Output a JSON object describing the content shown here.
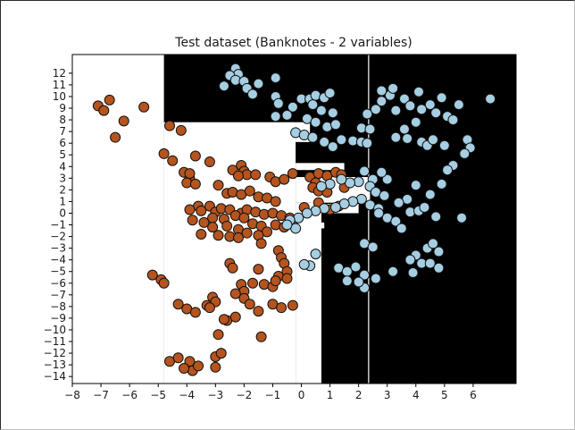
{
  "chart_data": {
    "type": "scatter",
    "title": "Test dataset (Banknotes - 2 variables)",
    "xlabel": "",
    "ylabel": "",
    "xlim": [
      -8,
      7.5
    ],
    "ylim": [
      -14.6,
      13.6
    ],
    "xticks": [
      -8,
      -7,
      -6,
      -5,
      -4,
      -3,
      -2,
      -1,
      0,
      1,
      2,
      3,
      4,
      5,
      6
    ],
    "yticks": [
      -14,
      -13,
      -12,
      -11,
      -10,
      -9,
      -8,
      -7,
      -6,
      -5,
      -4,
      -3,
      -2,
      -1,
      0,
      1,
      2,
      3,
      4,
      5,
      6,
      7,
      8,
      9,
      10,
      11,
      12
    ],
    "grid": false,
    "background_regions": {
      "class_brown_color": "#ffffff",
      "class_blue_color": "#000000",
      "brown_rects": [
        [
          -8,
          -4.8,
          -14.6,
          13.6
        ],
        [
          -4.8,
          -0.2,
          -14.6,
          7.8
        ],
        [
          -0.2,
          0.3,
          7.8,
          6.1
        ],
        [
          -0.2,
          1.5,
          4.3,
          3.7
        ],
        [
          -0.2,
          2.4,
          3.1,
          0.9
        ],
        [
          -0.2,
          0.4,
          0.9,
          -14.6
        ],
        [
          0.35,
          0.7,
          3.1,
          -14.6
        ],
        [
          0.3,
          2.0,
          0.8,
          0.0
        ],
        [
          -0.4,
          0.8,
          -0.8,
          -1.3
        ]
      ],
      "boundary_line_x": 2.35
    },
    "series": [
      {
        "color": "#b5541e",
        "points": [
          [
            -7.1,
            9.2
          ],
          [
            -6.9,
            8.8
          ],
          [
            -6.7,
            9.7
          ],
          [
            -6.5,
            6.5
          ],
          [
            -6.2,
            7.9
          ],
          [
            -5.5,
            9.1
          ],
          [
            -4.6,
            7.5
          ],
          [
            -4.2,
            7.1
          ],
          [
            -4.8,
            5.1
          ],
          [
            -4.5,
            4.5
          ],
          [
            -3.7,
            4.9
          ],
          [
            -3.2,
            4.4
          ],
          [
            -4.1,
            3.5
          ],
          [
            -3.9,
            3.0
          ],
          [
            -4.0,
            2.6
          ],
          [
            -3.7,
            2.5
          ],
          [
            -3.9,
            3.4
          ],
          [
            -2.9,
            2.4
          ],
          [
            -2.4,
            3.7
          ],
          [
            -2.1,
            4.1
          ],
          [
            -2.0,
            3.6
          ],
          [
            -1.9,
            3.3
          ],
          [
            -1.6,
            3.3
          ],
          [
            -2.2,
            3.2
          ],
          [
            -1.1,
            3.1
          ],
          [
            -0.9,
            2.7
          ],
          [
            -0.6,
            2.9
          ],
          [
            -0.3,
            3.4
          ],
          [
            0.3,
            3.1
          ],
          [
            0.6,
            3.4
          ],
          [
            0.9,
            3.2
          ],
          [
            1.2,
            3.5
          ],
          [
            1.4,
            3.3
          ],
          [
            0.5,
            2.6
          ],
          [
            0.4,
            2.2
          ],
          [
            0.6,
            1.9
          ],
          [
            0.9,
            1.8
          ],
          [
            1.5,
            2.2
          ],
          [
            -2.6,
            1.7
          ],
          [
            -2.4,
            1.8
          ],
          [
            -2.1,
            1.6
          ],
          [
            -1.8,
            1.9
          ],
          [
            -1.5,
            1.4
          ],
          [
            -1.2,
            1.3
          ],
          [
            -0.9,
            1.0
          ],
          [
            -3.2,
            0.6
          ],
          [
            -3.6,
            0.6
          ],
          [
            -3.9,
            0.3
          ],
          [
            -3.5,
            0.2
          ],
          [
            -3.0,
            0.1
          ],
          [
            -2.8,
            0.4
          ],
          [
            -2.5,
            0.3
          ],
          [
            -2.1,
            0.0
          ],
          [
            -1.9,
            0.3
          ],
          [
            -1.6,
            0.1
          ],
          [
            -1.3,
            -0.1
          ],
          [
            -1.0,
            0.0
          ],
          [
            -0.7,
            -0.2
          ],
          [
            -0.4,
            -0.4
          ],
          [
            0.1,
            0.5
          ],
          [
            0.6,
            0.9
          ],
          [
            1.0,
            0.3
          ],
          [
            1.3,
            0.6
          ],
          [
            -3.8,
            -0.6
          ],
          [
            -3.4,
            -0.8
          ],
          [
            -3.1,
            -0.4
          ],
          [
            -2.7,
            -0.5
          ],
          [
            -2.3,
            -0.2
          ],
          [
            -2.0,
            -0.4
          ],
          [
            -1.7,
            -0.9
          ],
          [
            -1.4,
            -1.1
          ],
          [
            -1.2,
            -1.6
          ],
          [
            -0.9,
            -1.0
          ],
          [
            -0.6,
            -1.2
          ],
          [
            -0.3,
            -0.9
          ],
          [
            -3.5,
            -1.8
          ],
          [
            -3.1,
            -1.2
          ],
          [
            -2.6,
            -1.1
          ],
          [
            -2.2,
            -1.4
          ],
          [
            -1.9,
            -1.7
          ],
          [
            -1.5,
            -1.9
          ],
          [
            -2.9,
            -1.9
          ],
          [
            -2.5,
            -2.0
          ],
          [
            -2.2,
            -2.1
          ],
          [
            -1.4,
            -2.6
          ],
          [
            -0.8,
            -3.2
          ],
          [
            -0.7,
            -3.8
          ],
          [
            -0.6,
            -4.3
          ],
          [
            -0.5,
            -5.0
          ],
          [
            -0.8,
            -5.4
          ],
          [
            -2.5,
            -4.3
          ],
          [
            -2.4,
            -4.7
          ],
          [
            -1.5,
            -4.8
          ],
          [
            -5.2,
            -5.3
          ],
          [
            -4.9,
            -5.7
          ],
          [
            -4.8,
            -6.0
          ],
          [
            -3.1,
            -7.2
          ],
          [
            -3.0,
            -7.6
          ],
          [
            -2.1,
            -6.1
          ],
          [
            -2.0,
            -6.7
          ],
          [
            -1.7,
            -6.0
          ],
          [
            -1.3,
            -6.1
          ],
          [
            -1.0,
            -6.3
          ],
          [
            -0.9,
            -5.8
          ],
          [
            -0.5,
            -5.6
          ],
          [
            -2.3,
            -6.9
          ],
          [
            -2.0,
            -7.3
          ],
          [
            -1.8,
            -7.8
          ],
          [
            -1.5,
            -8.4
          ],
          [
            -1.0,
            -7.8
          ],
          [
            -0.7,
            -8.1
          ],
          [
            -0.3,
            -7.9
          ],
          [
            -4.3,
            -7.8
          ],
          [
            -4.0,
            -8.2
          ],
          [
            -3.7,
            -8.5
          ],
          [
            -3.3,
            -7.9
          ],
          [
            -3.2,
            -8.1
          ],
          [
            -2.6,
            -9.2
          ],
          [
            -2.3,
            -8.9
          ],
          [
            -2.9,
            -10.4
          ],
          [
            -1.4,
            -10.6
          ],
          [
            -4.6,
            -12.7
          ],
          [
            -4.3,
            -12.4
          ],
          [
            -3.9,
            -12.7
          ],
          [
            -3.8,
            -13.5
          ],
          [
            -4.1,
            -13.3
          ],
          [
            -3.6,
            -13.1
          ],
          [
            -3.0,
            -12.3
          ],
          [
            -2.8,
            -12.0
          ],
          [
            -3.0,
            -13.2
          ],
          [
            -2.7,
            -9.1
          ]
        ]
      },
      {
        "color": "#a6cee3",
        "points": [
          [
            -2.3,
            12.4
          ],
          [
            -2.2,
            11.9
          ],
          [
            -2.5,
            11.8
          ],
          [
            -2.3,
            11.4
          ],
          [
            -2.0,
            11.3
          ],
          [
            -2.7,
            10.9
          ],
          [
            -1.9,
            10.7
          ],
          [
            -1.5,
            11.1
          ],
          [
            -1.7,
            10.2
          ],
          [
            -0.9,
            11.6
          ],
          [
            -0.9,
            10.0
          ],
          [
            -0.8,
            9.4
          ],
          [
            -0.3,
            9.1
          ],
          [
            0.0,
            9.8
          ],
          [
            0.3,
            9.8
          ],
          [
            0.5,
            10.1
          ],
          [
            0.8,
            9.9
          ],
          [
            1.0,
            10.3
          ],
          [
            0.4,
            9.3
          ],
          [
            0.7,
            8.8
          ],
          [
            1.1,
            8.6
          ],
          [
            -0.9,
            8.3
          ],
          [
            -0.5,
            8.4
          ],
          [
            0.2,
            8.1
          ],
          [
            0.5,
            7.8
          ],
          [
            0.9,
            7.4
          ],
          [
            1.2,
            7.6
          ],
          [
            -0.2,
            6.9
          ],
          [
            0.1,
            6.7
          ],
          [
            0.4,
            6.5
          ],
          [
            0.8,
            6.1
          ],
          [
            1.1,
            5.7
          ],
          [
            1.4,
            6.3
          ],
          [
            1.8,
            6.2
          ],
          [
            2.1,
            6.1
          ],
          [
            2.3,
            6.0
          ],
          [
            2.1,
            7.3
          ],
          [
            2.4,
            7.2
          ],
          [
            2.3,
            8.5
          ],
          [
            2.6,
            8.9
          ],
          [
            2.8,
            9.6
          ],
          [
            3.1,
            10.1
          ],
          [
            2.8,
            10.5
          ],
          [
            3.2,
            10.7
          ],
          [
            3.3,
            8.8
          ],
          [
            3.6,
            9.8
          ],
          [
            3.8,
            9.2
          ],
          [
            4.1,
            10.4
          ],
          [
            4.5,
            9.3
          ],
          [
            4.2,
            8.9
          ],
          [
            4.9,
            9.9
          ],
          [
            4.7,
            8.6
          ],
          [
            5.1,
            8.3
          ],
          [
            5.3,
            8.0
          ],
          [
            5.5,
            9.3
          ],
          [
            6.6,
            9.8
          ],
          [
            4.0,
            7.8
          ],
          [
            3.6,
            7.2
          ],
          [
            3.3,
            6.5
          ],
          [
            3.7,
            6.4
          ],
          [
            4.2,
            6.1
          ],
          [
            4.4,
            5.8
          ],
          [
            4.6,
            6.3
          ],
          [
            5.0,
            5.8
          ],
          [
            5.8,
            6.3
          ],
          [
            5.9,
            5.6
          ],
          [
            5.7,
            5.1
          ],
          [
            5.3,
            4.1
          ],
          [
            5.1,
            3.7
          ],
          [
            4.9,
            2.5
          ],
          [
            4.0,
            2.4
          ],
          [
            4.5,
            1.6
          ],
          [
            3.7,
            1.2
          ],
          [
            3.4,
            0.9
          ],
          [
            3.0,
            2.9
          ],
          [
            2.8,
            3.5
          ],
          [
            2.2,
            3.6
          ],
          [
            2.5,
            2.9
          ],
          [
            2.0,
            2.7
          ],
          [
            1.7,
            2.6
          ],
          [
            1.4,
            2.9
          ],
          [
            1.0,
            2.5
          ],
          [
            0.7,
            2.3
          ],
          [
            2.4,
            2.3
          ],
          [
            2.6,
            1.8
          ],
          [
            2.9,
            1.5
          ],
          [
            2.1,
            1.2
          ],
          [
            1.8,
            1.0
          ],
          [
            1.5,
            0.8
          ],
          [
            1.2,
            0.5
          ],
          [
            0.8,
            0.4
          ],
          [
            0.5,
            0.2
          ],
          [
            0.2,
            0.0
          ],
          [
            -0.1,
            -0.4
          ],
          [
            -0.4,
            -0.6
          ],
          [
            -0.2,
            -1.3
          ],
          [
            2.4,
            0.7
          ],
          [
            2.7,
            0.4
          ],
          [
            3.0,
            -0.4
          ],
          [
            3.3,
            -0.7
          ],
          [
            3.8,
            0.1
          ],
          [
            4.1,
            0.2
          ],
          [
            4.3,
            0.5
          ],
          [
            4.7,
            -0.3
          ],
          [
            5.6,
            -0.4
          ],
          [
            2.2,
            -2.6
          ],
          [
            2.5,
            -2.9
          ],
          [
            3.5,
            -1.3
          ],
          [
            4.4,
            -3.0
          ],
          [
            4.6,
            -2.6
          ],
          [
            4.8,
            -3.3
          ],
          [
            4.2,
            -4.3
          ],
          [
            4.0,
            -3.6
          ],
          [
            3.8,
            -4.0
          ],
          [
            3.2,
            -5.0
          ],
          [
            1.3,
            -4.7
          ],
          [
            1.6,
            -5.0
          ],
          [
            1.9,
            -4.6
          ],
          [
            2.2,
            -5.3
          ],
          [
            2.6,
            -5.6
          ],
          [
            2.2,
            -6.4
          ],
          [
            2.0,
            -5.9
          ],
          [
            1.6,
            -5.8
          ],
          [
            3.9,
            -5.1
          ],
          [
            4.5,
            -4.3
          ],
          [
            4.8,
            -4.7
          ],
          [
            0.5,
            -3.5
          ],
          [
            0.3,
            -4.5
          ],
          [
            0.1,
            -4.4
          ],
          [
            -0.5,
            -1.0
          ],
          [
            2.7,
            0.0
          ]
        ]
      }
    ]
  }
}
